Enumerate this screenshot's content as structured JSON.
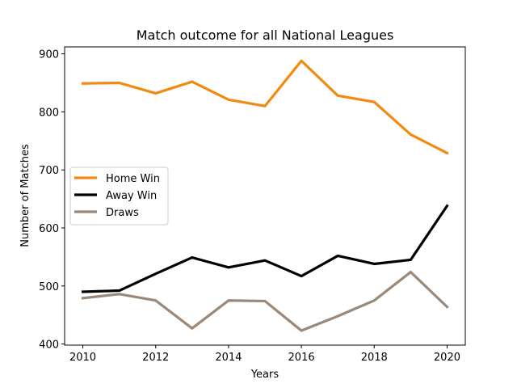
{
  "chart_data": {
    "type": "line",
    "title": "Match outcome for all National Leagues",
    "xlabel": "Years",
    "ylabel": "Number of Matches",
    "xlim": [
      2009.5,
      2020.5
    ],
    "ylim": [
      398,
      912
    ],
    "x_ticks": [
      2010,
      2012,
      2014,
      2016,
      2018,
      2020
    ],
    "y_ticks": [
      400,
      500,
      600,
      700,
      800,
      900
    ],
    "grid": false,
    "legend_position": "center-left",
    "x": [
      2010,
      2011,
      2012,
      2013,
      2014,
      2015,
      2016,
      2017,
      2018,
      2019,
      2020
    ],
    "series": [
      {
        "name": "Home Win",
        "color": "#f28a12",
        "values": [
          849,
          850,
          832,
          852,
          821,
          810,
          888,
          828,
          817,
          761,
          729
        ]
      },
      {
        "name": "Away Win",
        "color": "#000000",
        "values": [
          490,
          492,
          521,
          549,
          532,
          544,
          517,
          552,
          538,
          545,
          638
        ]
      },
      {
        "name": "Draws",
        "color": "#9a8878",
        "values": [
          479,
          486,
          475,
          427,
          475,
          474,
          423,
          448,
          475,
          524,
          464
        ]
      }
    ]
  }
}
